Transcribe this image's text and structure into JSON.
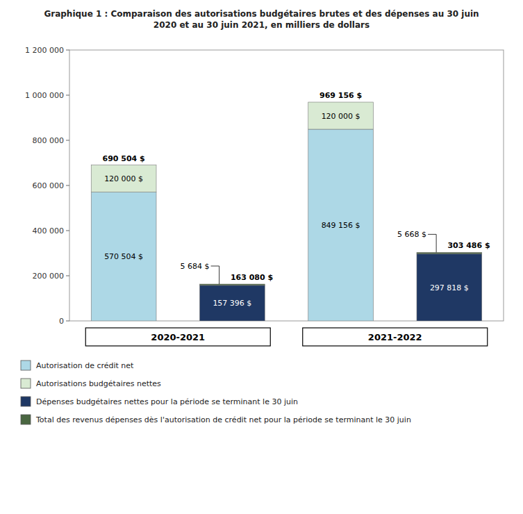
{
  "chart_data": {
    "type": "bar",
    "stacked": true,
    "title": "Graphique 1 : Comparaison des autorisations budgétaires brutes et des dépenses au 30 juin\n2020 et au 30 juin 2021, en milliers de dollars",
    "categories": [
      "2020-2021",
      null,
      "2021-2022",
      null
    ],
    "series": [
      {
        "name": "Autorisation de crédit net",
        "color": "#add8e6",
        "values": [
          570504,
          null,
          849156,
          null
        ],
        "value_labels": [
          "570 504 $",
          null,
          "849 156 $",
          null
        ]
      },
      {
        "name": "Autorisations budgétaires nettes",
        "color": "#d9ead3",
        "values": [
          120000,
          null,
          120000,
          null
        ],
        "value_labels": [
          "120 000 $",
          null,
          "120 000 $",
          null
        ]
      },
      {
        "name": "Dépenses budgétaires nettes pour la période se terminant le 30 juin",
        "color": "#1f3864",
        "values": [
          null,
          157396,
          null,
          297818
        ],
        "value_labels": [
          null,
          "157 396 $",
          null,
          "297 818 $"
        ]
      },
      {
        "name": "Total des revenus dépenses dès l'autorisation de crédit net pour la période se terminant le 30 juin",
        "color": "#4a6741",
        "values": [
          null,
          5684,
          null,
          5668
        ],
        "value_labels": [
          null,
          "5 684 $",
          null,
          "5 668 $"
        ]
      }
    ],
    "totals": [
      690504,
      163080,
      969156,
      303486
    ],
    "total_labels": [
      "690 504 $",
      "163 080 $",
      "969 156 $",
      "303 486 $"
    ],
    "data_labels": true,
    "ylim": [
      0,
      1200000
    ],
    "yticks": [
      0,
      {
        "value": 200000,
        "label": "200 000"
      },
      {
        "value": 400000,
        "label": "400 000"
      },
      {
        "value": 600000,
        "label": "600 000"
      },
      {
        "value": 800000,
        "label": "800 000"
      },
      {
        "value": 1000000,
        "label": "1 000 000"
      },
      {
        "value": 1200000,
        "label": "1 200 000"
      }
    ],
    "grid": false,
    "legend": "bottom"
  }
}
